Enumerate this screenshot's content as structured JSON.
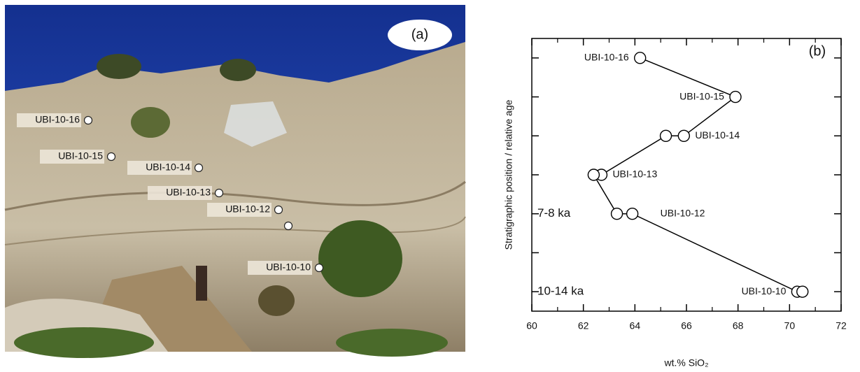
{
  "photo": {
    "panel_label": "(a)",
    "labels": [
      "UBI-10-16",
      "UBI-10-15",
      "UBI-10-14",
      "UBI-10-13",
      "UBI-10-12",
      "UBI-10-10"
    ]
  },
  "chart_data": {
    "type": "scatter-line",
    "panel_label": "(b)",
    "xlabel": "wt.% SiO₂",
    "ylabel": "Stratigraphic position / relative age",
    "xlim": [
      60,
      72
    ],
    "xticks": [
      60,
      62,
      64,
      66,
      68,
      70,
      72
    ],
    "xminor_ticks": [
      61,
      63,
      65,
      67,
      69,
      71
    ],
    "ylim": [
      0.5,
      7.5
    ],
    "yticks": [
      1,
      2,
      3,
      4,
      5,
      6,
      7
    ],
    "age_labels": [
      {
        "text": "7-8 ka",
        "y": 3
      },
      {
        "text": "10-14 ka",
        "y": 1
      }
    ],
    "color": "#000000",
    "samples": [
      {
        "name": "UBI-10-16",
        "x": [
          64.2
        ],
        "y": [
          7
        ]
      },
      {
        "name": "UBI-10-15",
        "x": [
          67.9
        ],
        "y": [
          6
        ]
      },
      {
        "name": "UBI-10-14",
        "x": [
          65.9,
          65.2
        ],
        "y": [
          5,
          5
        ]
      },
      {
        "name": "UBI-10-13",
        "x": [
          62.7,
          62.4
        ],
        "y": [
          4,
          4
        ]
      },
      {
        "name": "UBI-10-12",
        "x": [
          63.3,
          63.9
        ],
        "y": [
          3,
          3
        ]
      },
      {
        "name": "UBI-10-10",
        "x": [
          70.3,
          70.5
        ],
        "y": [
          1,
          1
        ]
      }
    ]
  }
}
